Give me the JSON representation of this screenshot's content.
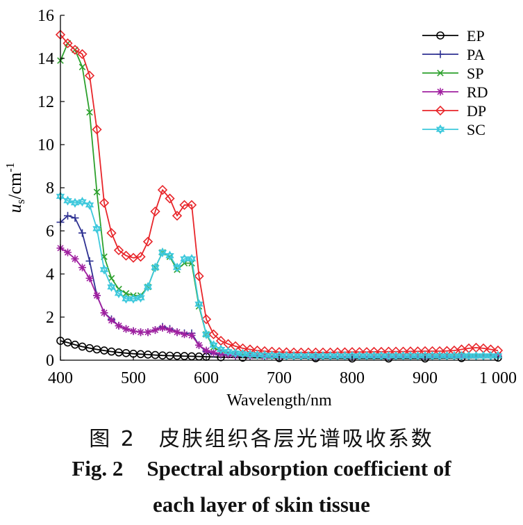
{
  "caption": {
    "cn": "图 2　皮肤组织各层光谱吸收系数",
    "fig_no": "Fig. 2",
    "en_line1": "Spectral absorption coefficient of",
    "en_line2": "each layer of skin tissue"
  },
  "chart_data": {
    "type": "line",
    "xlabel": "Wavelength/nm",
    "ylabel": "u",
    "ylabel_sub": "s",
    "ylabel_unit": "/cm",
    "ylabel_sup": "-1",
    "xlim": [
      400,
      1000
    ],
    "ylim": [
      0,
      16
    ],
    "xticks": [
      400,
      500,
      600,
      700,
      800,
      900,
      1000
    ],
    "xtick_labels": [
      "400",
      "500",
      "600",
      "700",
      "800",
      "900",
      "1 000"
    ],
    "yticks": [
      0,
      2,
      4,
      6,
      8,
      10,
      12,
      14,
      16
    ],
    "ytick_labels": [
      "0",
      "2",
      "4",
      "6",
      "8",
      "10",
      "12",
      "14",
      "16"
    ],
    "grid": false,
    "legend_position": "top-right",
    "series": [
      {
        "name": "EP",
        "color": "#000000",
        "marker": "circle",
        "x": [
          400,
          410,
          420,
          430,
          440,
          450,
          460,
          470,
          480,
          490,
          500,
          510,
          520,
          530,
          540,
          550,
          560,
          570,
          580,
          590,
          600,
          620,
          650,
          700,
          750,
          800,
          850,
          900,
          950,
          1000
        ],
        "y": [
          0.9,
          0.82,
          0.72,
          0.63,
          0.56,
          0.5,
          0.45,
          0.4,
          0.36,
          0.33,
          0.3,
          0.28,
          0.26,
          0.24,
          0.22,
          0.21,
          0.2,
          0.19,
          0.18,
          0.17,
          0.16,
          0.14,
          0.12,
          0.1,
          0.09,
          0.08,
          0.08,
          0.08,
          0.1,
          0.12
        ]
      },
      {
        "name": "PA",
        "color": "#2e3192",
        "marker": "plus",
        "x": [
          400,
          410,
          420,
          430,
          440,
          450,
          460,
          470,
          480,
          490,
          500,
          510,
          520,
          530,
          540,
          550,
          560,
          570,
          580,
          590,
          600,
          610,
          620,
          640,
          660,
          680,
          700,
          750,
          800,
          850,
          900,
          950,
          1000
        ],
        "y": [
          6.4,
          6.7,
          6.6,
          5.9,
          4.6,
          3.0,
          2.2,
          1.9,
          1.6,
          1.45,
          1.35,
          1.3,
          1.3,
          1.4,
          1.55,
          1.45,
          1.3,
          1.25,
          1.25,
          0.7,
          0.4,
          0.3,
          0.25,
          0.2,
          0.18,
          0.16,
          0.15,
          0.14,
          0.14,
          0.14,
          0.15,
          0.17,
          0.2
        ]
      },
      {
        "name": "SP",
        "color": "#2ca02c",
        "marker": "x",
        "x": [
          400,
          410,
          420,
          430,
          440,
          450,
          460,
          470,
          480,
          490,
          500,
          510,
          520,
          530,
          540,
          550,
          560,
          570,
          580,
          590,
          600,
          610,
          620,
          640,
          660,
          680,
          700,
          750,
          800,
          850,
          900,
          950,
          1000
        ],
        "y": [
          13.9,
          14.7,
          14.4,
          13.6,
          11.5,
          7.8,
          4.8,
          3.8,
          3.3,
          3.1,
          3.0,
          3.0,
          3.4,
          4.3,
          5.0,
          4.8,
          4.2,
          4.5,
          4.5,
          2.5,
          1.2,
          0.6,
          0.4,
          0.3,
          0.25,
          0.22,
          0.2,
          0.18,
          0.18,
          0.18,
          0.2,
          0.22,
          0.25
        ]
      },
      {
        "name": "RD",
        "color": "#a020a0",
        "marker": "star",
        "x": [
          400,
          410,
          420,
          430,
          440,
          450,
          460,
          470,
          480,
          490,
          500,
          510,
          520,
          530,
          540,
          550,
          560,
          570,
          580,
          590,
          600,
          610,
          620,
          630,
          640,
          660,
          680,
          700,
          750,
          800,
          850,
          900,
          950,
          1000
        ],
        "y": [
          5.2,
          5.0,
          4.7,
          4.3,
          3.8,
          3.0,
          2.2,
          1.85,
          1.6,
          1.45,
          1.35,
          1.3,
          1.3,
          1.4,
          1.5,
          1.4,
          1.3,
          1.2,
          1.15,
          0.7,
          0.45,
          0.35,
          0.3,
          0.25,
          0.22,
          0.2,
          0.18,
          0.17,
          0.16,
          0.16,
          0.16,
          0.17,
          0.2,
          0.22
        ]
      },
      {
        "name": "DP",
        "color": "#e8252a",
        "marker": "diamond",
        "x": [
          400,
          410,
          420,
          430,
          440,
          450,
          460,
          470,
          480,
          490,
          500,
          510,
          520,
          530,
          540,
          550,
          560,
          570,
          580,
          590,
          600,
          610,
          620,
          630,
          640,
          650,
          660,
          670,
          680,
          690,
          700,
          710,
          720,
          730,
          740,
          750,
          760,
          770,
          780,
          790,
          800,
          810,
          820,
          830,
          840,
          850,
          860,
          870,
          880,
          890,
          900,
          910,
          920,
          930,
          940,
          950,
          960,
          970,
          980,
          990,
          1000
        ],
        "y": [
          15.1,
          14.7,
          14.4,
          14.2,
          13.2,
          10.7,
          7.3,
          5.9,
          5.1,
          4.85,
          4.75,
          4.8,
          5.5,
          6.9,
          7.9,
          7.5,
          6.7,
          7.2,
          7.2,
          3.9,
          1.9,
          1.2,
          0.9,
          0.75,
          0.65,
          0.55,
          0.5,
          0.45,
          0.42,
          0.4,
          0.38,
          0.37,
          0.36,
          0.36,
          0.36,
          0.36,
          0.36,
          0.36,
          0.37,
          0.37,
          0.38,
          0.38,
          0.38,
          0.39,
          0.39,
          0.4,
          0.4,
          0.4,
          0.41,
          0.41,
          0.42,
          0.42,
          0.42,
          0.43,
          0.45,
          0.5,
          0.55,
          0.58,
          0.55,
          0.5,
          0.45
        ]
      },
      {
        "name": "SC",
        "color": "#3cc8dc",
        "marker": "hexagram",
        "x": [
          400,
          410,
          420,
          430,
          440,
          450,
          460,
          470,
          480,
          490,
          500,
          510,
          520,
          530,
          540,
          550,
          560,
          570,
          580,
          590,
          600,
          610,
          620,
          630,
          640,
          650,
          660,
          670,
          680,
          690,
          700,
          710,
          720,
          730,
          740,
          750,
          760,
          770,
          780,
          790,
          800,
          810,
          820,
          830,
          840,
          850,
          860,
          870,
          880,
          890,
          900,
          910,
          920,
          930,
          940,
          950,
          960,
          970,
          980,
          990,
          1000
        ],
        "y": [
          7.6,
          7.4,
          7.3,
          7.35,
          7.2,
          6.1,
          4.2,
          3.4,
          3.1,
          2.85,
          2.85,
          2.9,
          3.4,
          4.3,
          5.0,
          4.85,
          4.3,
          4.7,
          4.7,
          2.6,
          1.2,
          0.7,
          0.5,
          0.4,
          0.33,
          0.3,
          0.27,
          0.25,
          0.23,
          0.22,
          0.21,
          0.2,
          0.2,
          0.2,
          0.2,
          0.2,
          0.2,
          0.2,
          0.2,
          0.2,
          0.2,
          0.2,
          0.2,
          0.2,
          0.2,
          0.2,
          0.2,
          0.2,
          0.2,
          0.2,
          0.2,
          0.2,
          0.2,
          0.2,
          0.2,
          0.2,
          0.2,
          0.2,
          0.2,
          0.2,
          0.2
        ]
      }
    ]
  }
}
